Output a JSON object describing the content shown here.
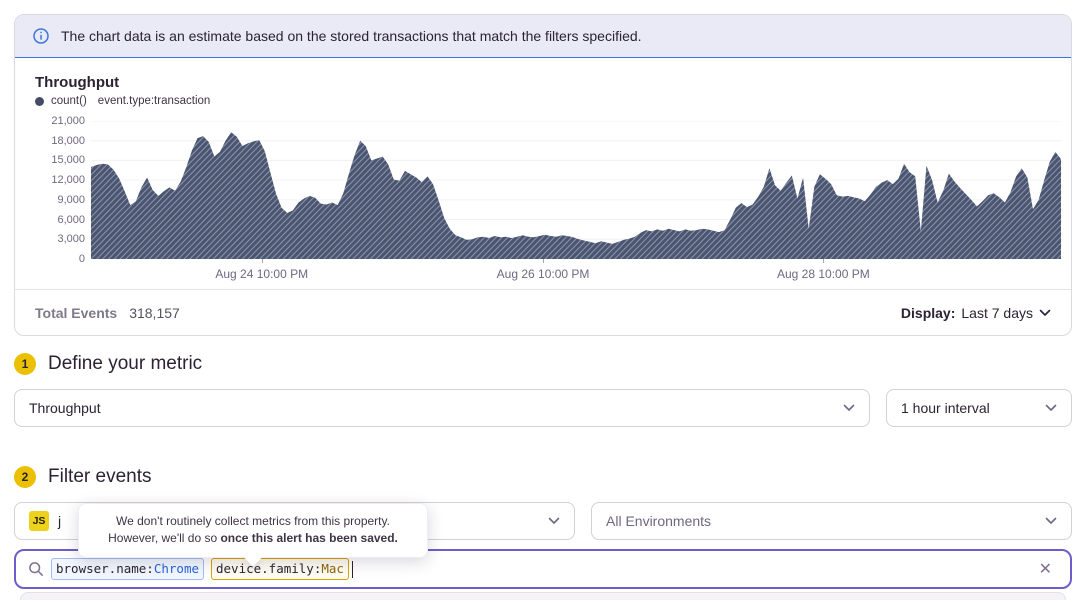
{
  "banner": {
    "text": "The chart data is an estimate based on the stored transactions that match the filters specified."
  },
  "chart": {
    "title": "Throughput",
    "legend": {
      "metric": "count()",
      "filter": "event.type:transaction"
    },
    "footer": {
      "total_label": "Total Events",
      "total_value": "318,157",
      "display_label": "Display:",
      "display_value": "Last 7 days"
    }
  },
  "chart_data": {
    "type": "area",
    "title": "Throughput",
    "series_name": "count()",
    "series_filter": "event.type:transaction",
    "ylim": [
      0,
      21000
    ],
    "grid": "horizontal",
    "y_ticks": [
      {
        "label": "0",
        "value": 0
      },
      {
        "label": "3,000",
        "value": 3000
      },
      {
        "label": "6,000",
        "value": 6000
      },
      {
        "label": "9,000",
        "value": 9000
      },
      {
        "label": "12,000",
        "value": 12000
      },
      {
        "label": "15,000",
        "value": 15000
      },
      {
        "label": "18,000",
        "value": 18000
      },
      {
        "label": "21,000",
        "value": 21000
      }
    ],
    "x_ticks": [
      {
        "label": "Aug 24 10:00 PM",
        "pos": 0.176
      },
      {
        "label": "Aug 26 10:00 PM",
        "pos": 0.466
      },
      {
        "label": "Aug 28 10:00 PM",
        "pos": 0.755
      }
    ],
    "values": [
      14000,
      14300,
      14500,
      14400,
      13600,
      12300,
      10300,
      8200,
      8800,
      10900,
      12400,
      10500,
      9600,
      10300,
      10900,
      10400,
      11800,
      14000,
      16500,
      18400,
      18700,
      17800,
      15600,
      16300,
      18000,
      19300,
      18600,
      17200,
      17600,
      17900,
      18100,
      16400,
      13100,
      9900,
      7800,
      7000,
      7400,
      8600,
      9200,
      9600,
      9300,
      8400,
      8300,
      8600,
      8200,
      10000,
      13000,
      15800,
      18000,
      17200,
      15000,
      15300,
      15600,
      14400,
      12100,
      11900,
      13400,
      12900,
      12400,
      11700,
      12600,
      11400,
      8900,
      6200,
      4600,
      3600,
      3300,
      2900,
      3000,
      3300,
      3400,
      3200,
      3500,
      3300,
      3400,
      3200,
      3400,
      3600,
      3400,
      3300,
      3500,
      3700,
      3500,
      3400,
      3600,
      3500,
      3300,
      3000,
      2800,
      2600,
      2400,
      2700,
      2500,
      2300,
      2600,
      2900,
      3100,
      3400,
      4000,
      4400,
      4200,
      4500,
      4300,
      4600,
      4400,
      4200,
      4500,
      4300,
      4400,
      4600,
      4500,
      4300,
      4100,
      4400,
      6000,
      7800,
      8500,
      7900,
      8300,
      9500,
      11000,
      13800,
      11200,
      10400,
      11600,
      12700,
      9200,
      12400,
      4600,
      11000,
      12900,
      12200,
      11400,
      9700,
      9500,
      9600,
      9400,
      9200,
      8800,
      9800,
      11000,
      11600,
      12000,
      11400,
      12200,
      14500,
      13200,
      12600,
      4200,
      14200,
      12000,
      8600,
      10400,
      13000,
      11800,
      10800,
      9900,
      9000,
      8000,
      8800,
      9700,
      10000,
      9400,
      8600,
      10200,
      12600,
      13800,
      12400,
      7600,
      9000,
      12000,
      14800,
      16300,
      15200
    ]
  },
  "sections": {
    "metric": {
      "step": "1",
      "title": "Define your metric",
      "metric_select": "Throughput",
      "interval_select": "1 hour interval"
    },
    "filter": {
      "step": "2",
      "title": "Filter events",
      "project_badge": "JS",
      "project_name": "j",
      "environment_select": "All Environments",
      "tooltip_line1": "We don't routinely collect metrics from this property.",
      "tooltip_line2_prefix": "However, we'll do so ",
      "tooltip_line2_bold": "once this alert has been saved."
    }
  },
  "search": {
    "tokens": [
      {
        "key": "browser.name:",
        "value": "Chrome",
        "style": "blue"
      },
      {
        "key": "device.family:",
        "value": "Mac",
        "style": "amber"
      }
    ]
  },
  "colors": {
    "accent_purple": "#6e5ec9",
    "banner_border": "#3c74dd",
    "banner_bg": "#eaeaf6",
    "chart_fill": "#4a5572",
    "step_badge": "#ebc000",
    "token_blue_value": "#2562d9",
    "token_amber_value": "#8d6708",
    "js_badge": "#ecd21b"
  }
}
